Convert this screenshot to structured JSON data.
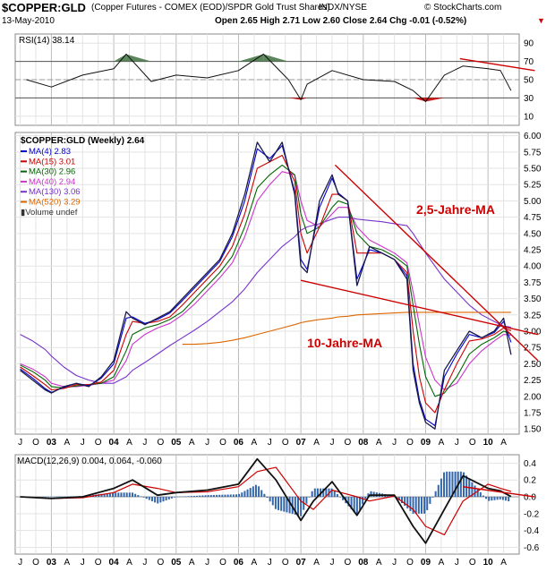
{
  "header": {
    "symbol": "$COPPER:GLD",
    "description": "(Copper Futures - COMEX (EOD)/SPDR Gold Trust Shares)",
    "exchange": "INDX/NYSE",
    "date": "13-May-2010",
    "ohlc": "Open 2.65  High 2.71  Low 2.60  Close 2.64  Chg -0.01 (-0.52%)",
    "brand": "© StockCharts.com"
  },
  "colors": {
    "price": "#1a1a4a",
    "ma4": "#0000cc",
    "ma15": "#cc0000",
    "ma30": "#006600",
    "ma40": "#cc33cc",
    "ma130": "#7733cc",
    "ma520": "#dd6600",
    "annotation": "#cc0000",
    "rsi_fill": "#4a7a4a",
    "macd_hist": "#3366aa"
  },
  "chart_data": [
    {
      "type": "line",
      "panel": "RSI",
      "legend": "RSI(14) 38.14",
      "yticks": [
        10,
        30,
        50,
        70,
        90
      ],
      "ylim": [
        0,
        100
      ],
      "reference_lines": [
        30,
        50,
        70
      ],
      "x": [
        2002.6,
        2003.0,
        2003.5,
        2004.0,
        2004.2,
        2004.6,
        2005.0,
        2005.5,
        2006.0,
        2006.4,
        2006.8,
        2007.0,
        2007.1,
        2007.5,
        2008.0,
        2008.5,
        2008.8,
        2009.0,
        2009.3,
        2009.6,
        2010.0,
        2010.2,
        2010.37
      ],
      "values": [
        50,
        42,
        55,
        62,
        78,
        48,
        55,
        52,
        60,
        78,
        50,
        28,
        45,
        60,
        50,
        48,
        38,
        26,
        55,
        65,
        62,
        60,
        38
      ],
      "annotations": [
        {
          "type": "trendline",
          "color": "#cc0000",
          "x": [
            2009.55,
            2010.75
          ],
          "y": [
            73,
            60
          ]
        }
      ]
    },
    {
      "type": "line",
      "panel": "price",
      "title": "$COPPER:GLD (Weekly) 2.64",
      "xlabels": [
        "J",
        "O",
        "03",
        "A",
        "J",
        "O",
        "04",
        "A",
        "J",
        "O",
        "05",
        "A",
        "J",
        "O",
        "06",
        "A",
        "J",
        "O",
        "07",
        "A",
        "J",
        "O",
        "08",
        "A",
        "J",
        "O",
        "09",
        "A",
        "J",
        "O",
        "10",
        "A"
      ],
      "yticks": [
        1.5,
        1.75,
        2.0,
        2.25,
        2.5,
        2.75,
        3.0,
        3.25,
        3.5,
        3.75,
        4.0,
        4.25,
        4.5,
        4.75,
        5.0,
        5.25,
        5.5,
        5.75,
        6.0
      ],
      "ylim": [
        1.42,
        6.05
      ],
      "x": [
        2002.5,
        2002.7,
        2002.9,
        2003.0,
        2003.2,
        2003.4,
        2003.6,
        2003.8,
        2004.0,
        2004.2,
        2004.3,
        2004.5,
        2004.7,
        2004.9,
        2005.1,
        2005.3,
        2005.5,
        2005.7,
        2005.9,
        2006.1,
        2006.3,
        2006.5,
        2006.7,
        2006.9,
        2007.0,
        2007.1,
        2007.3,
        2007.5,
        2007.6,
        2007.75,
        2007.9,
        2008.1,
        2008.3,
        2008.5,
        2008.7,
        2008.8,
        2008.9,
        2009.0,
        2009.15,
        2009.3,
        2009.5,
        2009.7,
        2009.9,
        2010.1,
        2010.25,
        2010.37
      ],
      "series": [
        {
          "name": "$COPPER:GLD (Weekly) 2.64",
          "values": [
            2.4,
            2.25,
            2.1,
            2.05,
            2.15,
            2.2,
            2.15,
            2.3,
            2.55,
            3.3,
            3.2,
            3.1,
            3.2,
            3.3,
            3.5,
            3.7,
            3.9,
            4.1,
            4.5,
            5.1,
            5.9,
            5.6,
            5.9,
            5.1,
            4.0,
            3.9,
            5.0,
            5.4,
            5.1,
            5.0,
            3.7,
            4.3,
            4.2,
            4.1,
            3.8,
            2.4,
            1.9,
            1.6,
            1.5,
            2.4,
            2.7,
            3.0,
            2.9,
            3.0,
            3.2,
            2.64
          ]
        },
        {
          "name": "MA(4) 2.83",
          "values": [
            2.42,
            2.28,
            2.12,
            2.06,
            2.14,
            2.2,
            2.16,
            2.28,
            2.5,
            3.2,
            3.22,
            3.12,
            3.18,
            3.28,
            3.47,
            3.67,
            3.87,
            4.07,
            4.45,
            5.0,
            5.8,
            5.65,
            5.85,
            5.15,
            4.1,
            3.95,
            4.9,
            5.35,
            5.12,
            5.0,
            3.8,
            4.25,
            4.2,
            4.1,
            3.85,
            2.5,
            1.95,
            1.65,
            1.55,
            2.3,
            2.65,
            2.95,
            2.9,
            2.98,
            3.15,
            2.83
          ]
        },
        {
          "name": "MA(15) 3.01",
          "values": [
            2.45,
            2.32,
            2.18,
            2.1,
            2.12,
            2.18,
            2.18,
            2.22,
            2.4,
            2.95,
            3.15,
            3.12,
            3.15,
            3.22,
            3.4,
            3.6,
            3.8,
            4.0,
            4.3,
            4.8,
            5.5,
            5.6,
            5.7,
            5.3,
            4.5,
            4.2,
            4.6,
            5.1,
            5.1,
            5.0,
            4.2,
            4.2,
            4.2,
            4.1,
            3.9,
            3.0,
            2.3,
            1.9,
            1.75,
            2.1,
            2.5,
            2.85,
            2.88,
            2.95,
            3.05,
            3.01
          ]
        },
        {
          "name": "MA(30) 2.96",
          "values": [
            2.48,
            2.38,
            2.25,
            2.15,
            2.13,
            2.16,
            2.18,
            2.2,
            2.3,
            2.7,
            2.95,
            3.05,
            3.1,
            3.18,
            3.3,
            3.5,
            3.7,
            3.9,
            4.15,
            4.6,
            5.2,
            5.4,
            5.55,
            5.4,
            4.8,
            4.5,
            4.6,
            4.9,
            5.0,
            4.95,
            4.5,
            4.3,
            4.25,
            4.15,
            4.0,
            3.4,
            2.8,
            2.3,
            2.0,
            2.05,
            2.3,
            2.65,
            2.8,
            2.9,
            3.0,
            2.96
          ]
        },
        {
          "name": "MA(40) 2.94",
          "values": [
            2.5,
            2.42,
            2.3,
            2.2,
            2.15,
            2.15,
            2.17,
            2.2,
            2.25,
            2.55,
            2.8,
            2.95,
            3.05,
            3.12,
            3.25,
            3.42,
            3.62,
            3.82,
            4.05,
            4.45,
            5.0,
            5.25,
            5.45,
            5.4,
            5.0,
            4.7,
            4.6,
            4.8,
            4.9,
            4.9,
            4.6,
            4.4,
            4.3,
            4.2,
            4.05,
            3.6,
            3.1,
            2.6,
            2.25,
            2.1,
            2.2,
            2.5,
            2.7,
            2.85,
            2.95,
            2.94
          ]
        },
        {
          "name": "MA(130) 3.06",
          "values": [
            2.95,
            2.85,
            2.72,
            2.62,
            2.45,
            2.32,
            2.25,
            2.2,
            2.2,
            2.3,
            2.4,
            2.52,
            2.65,
            2.78,
            2.9,
            3.02,
            3.15,
            3.3,
            3.45,
            3.65,
            3.9,
            4.1,
            4.3,
            4.45,
            4.55,
            4.6,
            4.65,
            4.72,
            4.75,
            4.75,
            4.72,
            4.7,
            4.68,
            4.65,
            4.62,
            4.5,
            4.35,
            4.2,
            4.0,
            3.8,
            3.6,
            3.4,
            3.25,
            3.15,
            3.08,
            3.06
          ]
        },
        {
          "name": "MA(520) 3.29",
          "values": [
            null,
            null,
            null,
            null,
            null,
            null,
            null,
            null,
            null,
            null,
            null,
            null,
            null,
            null,
            2.8,
            2.8,
            2.81,
            2.83,
            2.86,
            2.9,
            2.95,
            3.0,
            3.05,
            3.1,
            3.13,
            3.15,
            3.18,
            3.2,
            3.22,
            3.23,
            3.25,
            3.26,
            3.27,
            3.28,
            3.29,
            3.29,
            3.29,
            3.29,
            3.29,
            3.29,
            3.29,
            3.29,
            3.29,
            3.29,
            3.29,
            3.29
          ]
        }
      ],
      "legend_extra": "Volume undef",
      "annotations": [
        {
          "type": "text",
          "text": "2,5-Jahre-MA",
          "color": "#cc0000",
          "x": 2008.85,
          "y": 4.8
        },
        {
          "type": "text",
          "text": "10-Jahre-MA",
          "color": "#cc0000",
          "x": 2007.1,
          "y": 2.75
        },
        {
          "type": "trendline",
          "color": "#cc0000",
          "x": [
            2007.55,
            2010.8
          ],
          "y": [
            5.55,
            2.55
          ]
        },
        {
          "type": "trendline",
          "color": "#cc0000",
          "x": [
            2007.0,
            2010.8
          ],
          "y": [
            3.78,
            2.95
          ]
        }
      ]
    },
    {
      "type": "line",
      "panel": "MACD",
      "legend": "MACD(12,26,9) 0.004, 0.064, -0.060",
      "yticks": [
        -0.6,
        -0.4,
        -0.2,
        0.0,
        0.2,
        0.4
      ],
      "ylim": [
        -0.68,
        0.5
      ],
      "x": [
        2002.5,
        2003.0,
        2003.5,
        2004.0,
        2004.3,
        2004.7,
        2005.0,
        2005.5,
        2006.0,
        2006.3,
        2006.6,
        2007.0,
        2007.2,
        2007.5,
        2007.9,
        2008.1,
        2008.5,
        2008.8,
        2009.0,
        2009.3,
        2009.6,
        2010.0,
        2010.2,
        2010.37
      ],
      "series": [
        {
          "name": "MACD",
          "values": [
            0.0,
            -0.02,
            0.0,
            0.1,
            0.2,
            0.02,
            0.05,
            0.08,
            0.15,
            0.45,
            0.2,
            -0.28,
            -0.05,
            0.18,
            -0.22,
            0.02,
            0.02,
            -0.35,
            -0.55,
            -0.15,
            0.25,
            0.1,
            0.07,
            0.004
          ]
        },
        {
          "name": "Signal",
          "values": [
            0.0,
            -0.02,
            -0.01,
            0.05,
            0.15,
            0.1,
            0.05,
            0.06,
            0.12,
            0.3,
            0.35,
            -0.05,
            -0.15,
            0.08,
            0.0,
            -0.05,
            0.01,
            -0.15,
            -0.35,
            -0.45,
            -0.05,
            0.15,
            0.1,
            0.064
          ]
        },
        {
          "name": "Histogram",
          "values": [
            0.0,
            0.0,
            0.01,
            0.05,
            0.05,
            -0.08,
            0.0,
            0.02,
            0.03,
            0.15,
            -0.15,
            -0.23,
            0.1,
            0.1,
            -0.22,
            0.07,
            0.01,
            -0.2,
            -0.2,
            0.3,
            0.3,
            -0.05,
            -0.03,
            -0.06
          ]
        }
      ],
      "annotations": [
        {
          "type": "trendline",
          "color": "#cc0000",
          "x": [
            2009.6,
            2010.75
          ],
          "y": [
            0.12,
            0.0
          ]
        }
      ]
    }
  ]
}
